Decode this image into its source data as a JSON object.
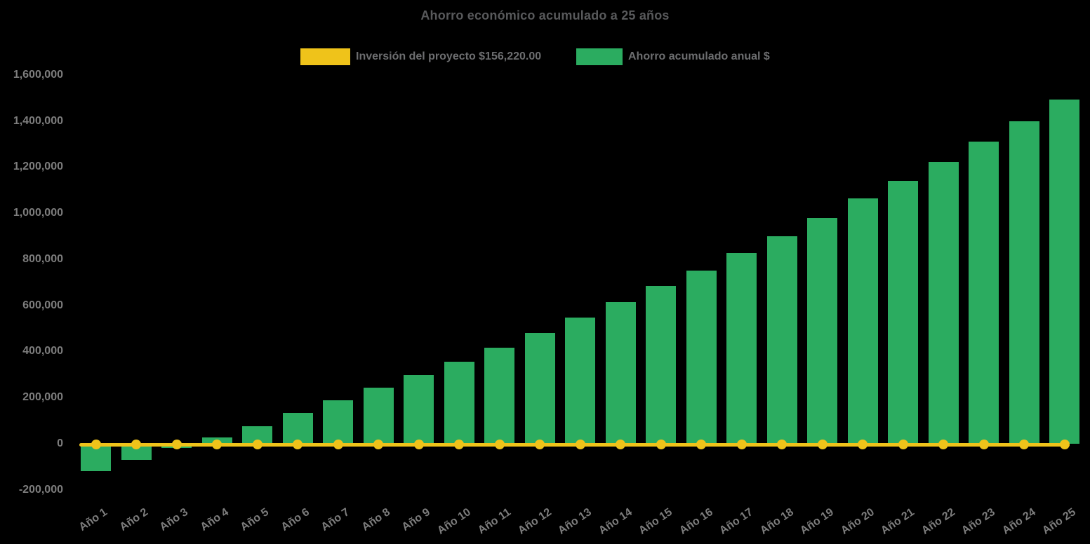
{
  "chart_data": {
    "type": "bar",
    "title": "Ahorro económico acumulado a 25 años",
    "categories": [
      "Año 1",
      "Año 2",
      "Año 3",
      "Año 4",
      "Año 5",
      "Año 6",
      "Año 7",
      "Año 8",
      "Año 9",
      "Año 10",
      "Año 11",
      "Año 12",
      "Año 13",
      "Año 14",
      "Año 15",
      "Año 16",
      "Año 17",
      "Año 18",
      "Año 19",
      "Año 20",
      "Año 21",
      "Año 22",
      "Año 23",
      "Año 24",
      "Año 25"
    ],
    "series": [
      {
        "name": "Inversión del proyecto $156,220.00",
        "type": "line",
        "color": "#EFC31A",
        "point_style": "circle",
        "values": [
          0,
          0,
          0,
          0,
          0,
          0,
          0,
          0,
          0,
          0,
          0,
          0,
          0,
          0,
          0,
          0,
          0,
          0,
          0,
          0,
          0,
          0,
          0,
          0,
          0
        ]
      },
      {
        "name": "Ahorro acumulado anual $",
        "type": "bar",
        "color": "#2BAC60",
        "values": [
          -118000,
          -70000,
          -19000,
          29000,
          77000,
          133000,
          188000,
          244000,
          299000,
          356000,
          417000,
          481000,
          548000,
          614000,
          685000,
          751000,
          827000,
          899000,
          979000,
          1063000,
          1141000,
          1222000,
          1309000,
          1400000,
          1492000
        ]
      }
    ],
    "ylim": [
      -200000,
      1600000
    ],
    "ytick_step": 200000,
    "ytick_labels": [
      "-200,000",
      "0",
      "200,000",
      "400,000",
      "600,000",
      "800,000",
      "1,000,000",
      "1,200,000",
      "1,400,000",
      "1,600,000"
    ],
    "xlabel": "",
    "ylabel": "",
    "grid": false,
    "legend_position": "top",
    "background": "#000000",
    "text_colors": {
      "title": "#58595B",
      "legend": "#6D6E70",
      "axis_labels": "#7D7D7D"
    }
  }
}
